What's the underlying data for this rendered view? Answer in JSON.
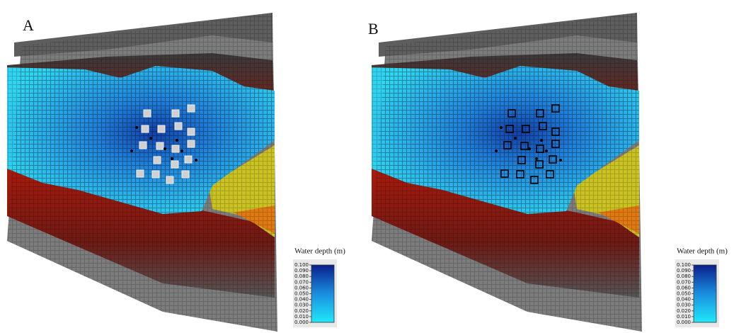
{
  "panels": [
    {
      "label": "A",
      "legend": {
        "title": "Water depth (m)",
        "ticks": [
          {
            "value": 0.1,
            "label": "0.100"
          },
          {
            "value": 0.09,
            "label": "0.090"
          },
          {
            "value": 0.08,
            "label": "0.080"
          },
          {
            "value": 0.07,
            "label": "0.070"
          },
          {
            "value": 0.06,
            "label": "0.060"
          },
          {
            "value": 0.05,
            "label": "0.050"
          },
          {
            "value": 0.04,
            "label": "0.040"
          },
          {
            "value": 0.03,
            "label": "0.030"
          },
          {
            "value": 0.02,
            "label": "0.020"
          },
          {
            "value": 0.01,
            "label": "0.010"
          },
          {
            "value": 0,
            "label": "0.000"
          }
        ]
      }
    },
    {
      "label": "B",
      "legend": {
        "title": "Water depth (m)",
        "ticks": [
          {
            "value": 0.1,
            "label": "0.100"
          },
          {
            "value": 0.09,
            "label": "0.090"
          },
          {
            "value": 0.08,
            "label": "0.080"
          },
          {
            "value": 0.07,
            "label": "0.070"
          },
          {
            "value": 0.06,
            "label": "0.060"
          },
          {
            "value": 0.05,
            "label": "0.050"
          },
          {
            "value": 0.04,
            "label": "0.040"
          },
          {
            "value": 0.03,
            "label": "0.030"
          },
          {
            "value": 0.02,
            "label": "0.020"
          },
          {
            "value": 0.01,
            "label": "0.010"
          },
          {
            "value": 0,
            "label": "0.000"
          }
        ]
      }
    }
  ]
}
